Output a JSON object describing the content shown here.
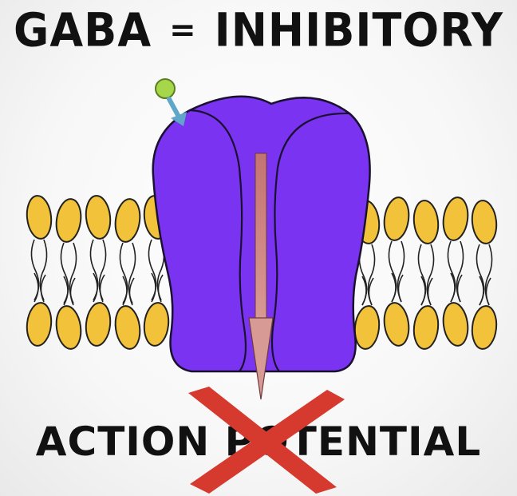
{
  "headline": {
    "left": "GABA",
    "equals": "=",
    "right": "INHIBITORY"
  },
  "footer": {
    "text": "ACTION POTENTIAL"
  },
  "colors": {
    "channel": "#7a33f0",
    "lipid_head": "#f2c23a",
    "ligand": "#a6d64a",
    "ligand_arrow": "#5fa6c8",
    "ion_arrow": "#c97777",
    "cross": "#d63a2e",
    "text": "#111111"
  },
  "icons": [
    "gaba-ligand-icon",
    "binding-arrow-icon",
    "ion-flow-arrow-icon",
    "red-cross-icon"
  ]
}
